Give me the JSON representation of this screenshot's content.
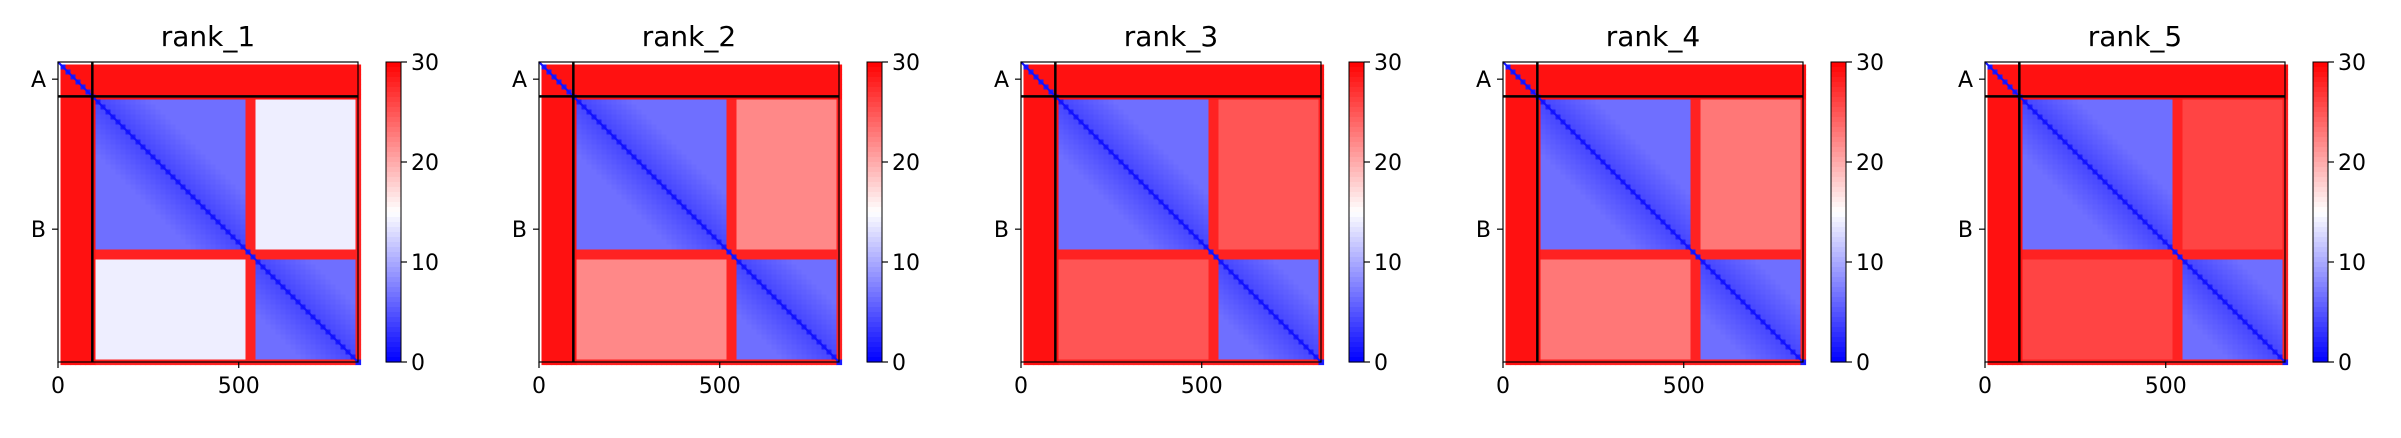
{
  "chart_data": [
    {
      "type": "heatmap",
      "title": "rank_1",
      "chains": [
        {
          "label": "A",
          "start": 0,
          "end": 95
        },
        {
          "label": "B",
          "start": 95,
          "end": 830
        }
      ],
      "blocks": [
        {
          "start": 95,
          "end": 515
        },
        {
          "start": 535,
          "end": 810
        }
      ],
      "inter_block_value": 14,
      "x_ticks": [
        0,
        500
      ],
      "xlim": [
        0,
        830
      ],
      "colorbar": {
        "min": 0,
        "max": 30,
        "ticks": [
          0,
          10,
          20,
          30
        ]
      }
    },
    {
      "type": "heatmap",
      "title": "rank_2",
      "chains": [
        {
          "label": "A",
          "start": 0,
          "end": 95
        },
        {
          "label": "B",
          "start": 95,
          "end": 830
        }
      ],
      "blocks": [
        {
          "start": 95,
          "end": 515
        },
        {
          "start": 535,
          "end": 810
        }
      ],
      "inter_block_value": 22,
      "x_ticks": [
        0,
        500
      ],
      "xlim": [
        0,
        830
      ],
      "colorbar": {
        "min": 0,
        "max": 30,
        "ticks": [
          0,
          10,
          20,
          30
        ]
      }
    },
    {
      "type": "heatmap",
      "title": "rank_3",
      "chains": [
        {
          "label": "A",
          "start": 0,
          "end": 95
        },
        {
          "label": "B",
          "start": 95,
          "end": 830
        }
      ],
      "blocks": [
        {
          "start": 95,
          "end": 515
        },
        {
          "start": 535,
          "end": 810
        }
      ],
      "inter_block_value": 25,
      "x_ticks": [
        0,
        500
      ],
      "xlim": [
        0,
        830
      ],
      "colorbar": {
        "min": 0,
        "max": 30,
        "ticks": [
          0,
          10,
          20,
          30
        ]
      }
    },
    {
      "type": "heatmap",
      "title": "rank_4",
      "chains": [
        {
          "label": "A",
          "start": 0,
          "end": 95
        },
        {
          "label": "B",
          "start": 95,
          "end": 830
        }
      ],
      "blocks": [
        {
          "start": 95,
          "end": 515
        },
        {
          "start": 535,
          "end": 810
        }
      ],
      "inter_block_value": 23,
      "x_ticks": [
        0,
        500
      ],
      "xlim": [
        0,
        830
      ],
      "colorbar": {
        "min": 0,
        "max": 30,
        "ticks": [
          0,
          10,
          20,
          30
        ]
      }
    },
    {
      "type": "heatmap",
      "title": "rank_5",
      "chains": [
        {
          "label": "A",
          "start": 0,
          "end": 95
        },
        {
          "label": "B",
          "start": 95,
          "end": 830
        }
      ],
      "blocks": [
        {
          "start": 95,
          "end": 515
        },
        {
          "start": 535,
          "end": 810
        }
      ],
      "inter_block_value": 26,
      "x_ticks": [
        0,
        500
      ],
      "xlim": [
        0,
        830
      ],
      "colorbar": {
        "min": 0,
        "max": 30,
        "ticks": [
          0,
          10,
          20,
          30
        ]
      }
    }
  ],
  "colors": {
    "low": "#0000ff",
    "mid": "#ffffff",
    "high": "#ff0000",
    "separator": "#000000"
  }
}
